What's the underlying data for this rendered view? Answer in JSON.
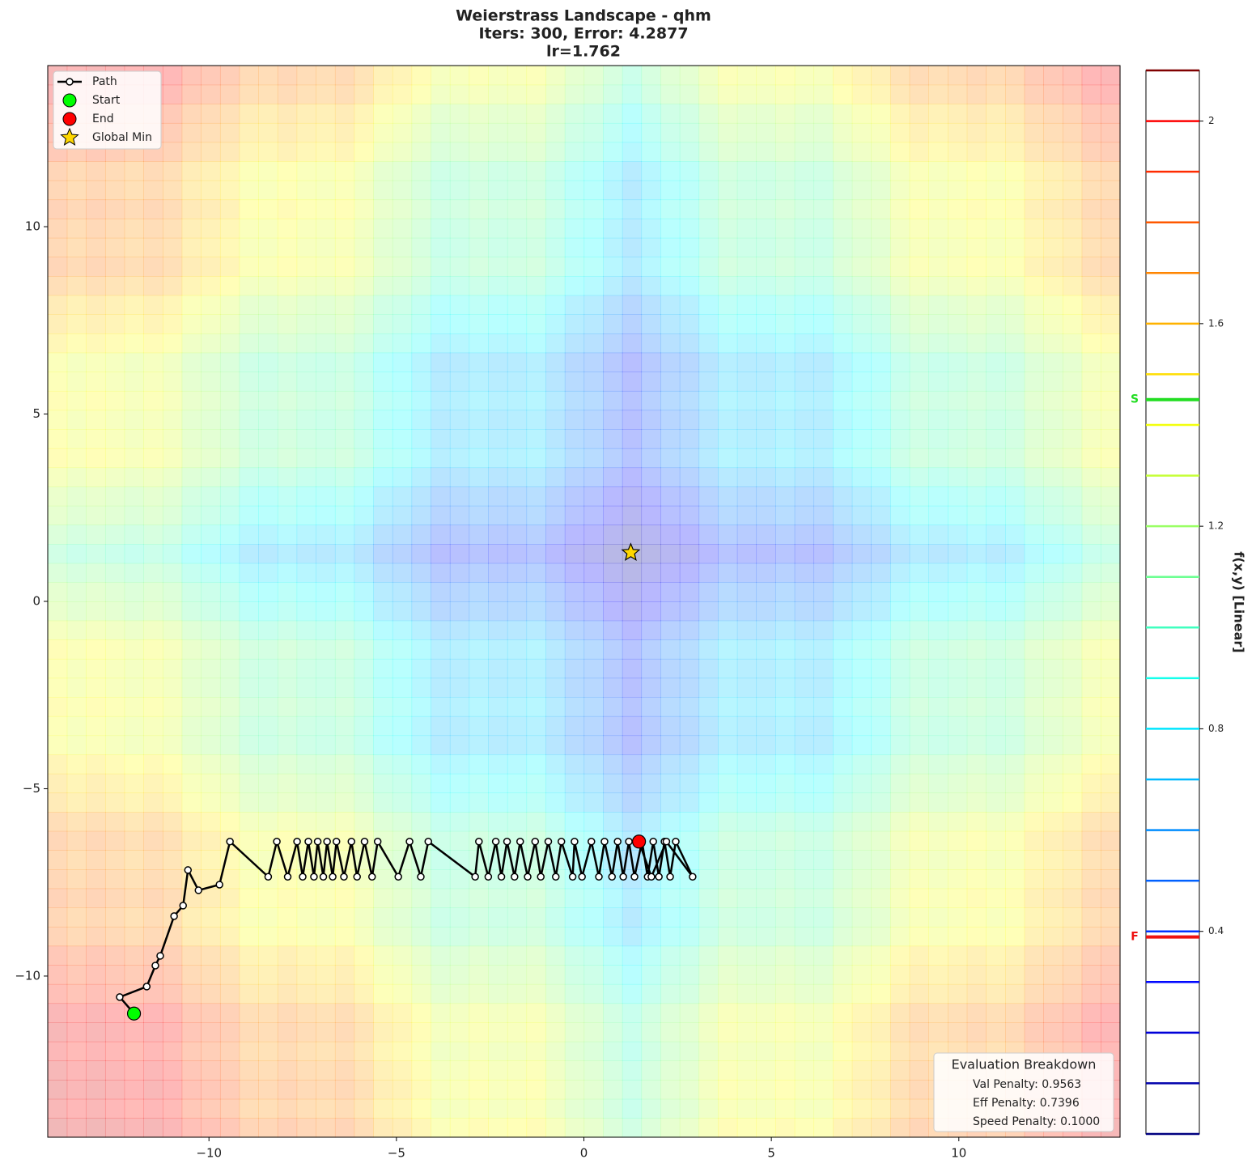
{
  "chart_data": {
    "type": "contour",
    "title": [
      "Weierstrass Landscape - qhm",
      "Iters: 300, Error: 4.2877",
      "lr=1.762"
    ],
    "xlim": [
      -14.3,
      14.3
    ],
    "ylim": [
      -14.3,
      14.3
    ],
    "xticks": [
      {
        "value": -10,
        "label": "−10"
      },
      {
        "value": -5,
        "label": "−5"
      },
      0,
      5,
      10
    ],
    "yticks": [
      {
        "value": -10,
        "label": "−10"
      },
      {
        "value": -5,
        "label": "−5"
      },
      0,
      5,
      10
    ],
    "legend": "upper left",
    "series": [
      {
        "name": "Path",
        "marker": "line",
        "color": "#000000",
        "x": [
          -12.0,
          -12.38,
          -11.66,
          -11.43,
          -11.3,
          -10.93,
          -10.69,
          -10.56,
          -10.28,
          -9.72,
          -9.44,
          -8.42,
          -8.19,
          -7.9,
          -7.65,
          -7.5,
          -7.35,
          -7.2,
          -7.1,
          -6.95,
          -6.85,
          -6.7,
          -6.6,
          -6.4,
          -6.2,
          -6.05,
          -5.85,
          -5.65,
          -5.5,
          -4.95,
          -4.65,
          -4.35,
          -4.15,
          -2.9,
          -2.8,
          -2.55,
          -2.35,
          -2.2,
          -2.05,
          -1.85,
          -1.7,
          -1.5,
          -1.3,
          -1.15,
          -0.95,
          -0.75,
          -0.6,
          -0.3,
          -0.25,
          -0.05,
          0.2,
          0.4,
          0.55,
          0.75,
          0.9,
          1.05,
          1.2,
          1.35,
          1.55,
          1.7,
          1.85,
          2.0,
          2.15,
          2.3,
          2.45,
          2.9,
          2.2,
          1.8,
          1.47
        ],
        "y": [
          -11.0,
          -10.56,
          -10.28,
          -9.72,
          -9.46,
          -8.4,
          -8.12,
          -7.17,
          -7.71,
          -7.56,
          -6.41,
          -7.35,
          -6.41,
          -7.35,
          -6.41,
          -7.35,
          -6.41,
          -7.35,
          -6.41,
          -7.35,
          -6.41,
          -7.35,
          -6.41,
          -7.35,
          -6.41,
          -7.35,
          -6.41,
          -7.35,
          -6.41,
          -7.35,
          -6.41,
          -7.35,
          -6.41,
          -7.35,
          -6.41,
          -7.35,
          -6.41,
          -7.35,
          -6.41,
          -7.35,
          -6.41,
          -7.35,
          -6.41,
          -7.35,
          -6.41,
          -7.35,
          -6.41,
          -7.35,
          -6.41,
          -7.35,
          -6.41,
          -7.35,
          -6.41,
          -7.35,
          -6.41,
          -7.35,
          -6.41,
          -7.35,
          -6.41,
          -7.35,
          -6.41,
          -7.35,
          -6.41,
          -7.35,
          -6.41,
          -7.35,
          -6.41,
          -7.35,
          -6.41
        ]
      },
      {
        "name": "Start",
        "marker": "circle",
        "color": "#00ff00",
        "x": [
          -12.0
        ],
        "y": [
          -11.0
        ]
      },
      {
        "name": "End",
        "marker": "circle",
        "color": "#ff0000",
        "x": [
          1.47
        ],
        "y": [
          -6.41
        ]
      },
      {
        "name": "Global Min",
        "marker": "star",
        "color": "#ffd700",
        "x": [
          1.25
        ],
        "y": [
          1.3
        ]
      }
    ],
    "colorbar": {
      "label": "f(x,y) [Linear]",
      "lim": [
        0,
        2.1
      ],
      "ticks": [
        0.4,
        0.8,
        1.2,
        1.6,
        2.0
      ],
      "levels": [
        0,
        0.1,
        0.2,
        0.3,
        0.4,
        0.5,
        0.6,
        0.7,
        0.8,
        0.9,
        1.0,
        1.1,
        1.2,
        1.3,
        1.4,
        1.5,
        1.6,
        1.7,
        1.8,
        1.9,
        2.0,
        2.1
      ],
      "markers": [
        {
          "label": "S",
          "value": 1.45,
          "color": "#22dd22"
        },
        {
          "label": "F",
          "value": 0.389,
          "color": "#ee1111"
        }
      ]
    },
    "annotation": {
      "title": "Evaluation Breakdown",
      "lines": [
        "Val Penalty: 0.9563",
        "Eff Penalty: 0.7396",
        "Speed Penalty: 0.1000"
      ]
    }
  }
}
